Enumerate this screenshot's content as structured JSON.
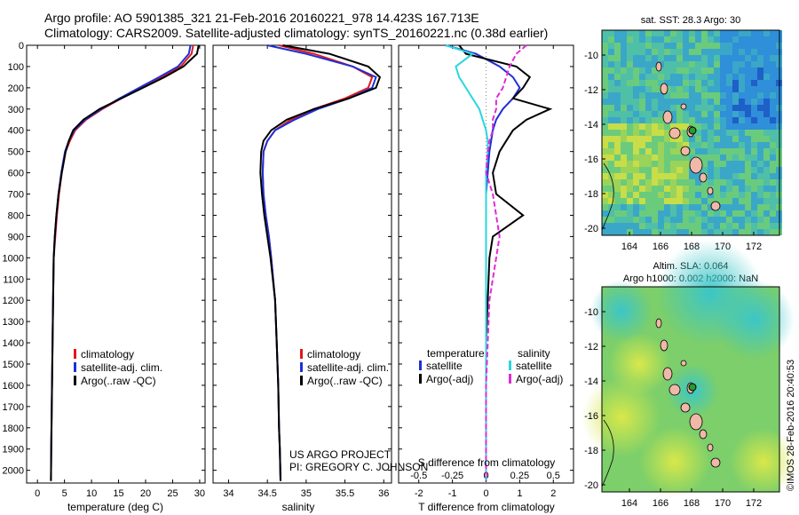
{
  "header": {
    "line1": "Argo profile: AO 5901385_321 21-Feb-2016 20160221_978 14.423S 167.713E",
    "line2": "Climatology: CARS2009. Satellite-adjusted climatology: synTS_20160221.nc (0.38d earlier)"
  },
  "colors": {
    "climatology": "#e0191d",
    "satellite": "#1f2fd6",
    "argo": "#000000",
    "sal_satellite": "#2bd6e0",
    "sal_argo": "#e02bd6"
  },
  "depth_ticks": [
    "0",
    "100",
    "200",
    "300",
    "400",
    "500",
    "600",
    "700",
    "800",
    "900",
    "1000",
    "1100",
    "1200",
    "1300",
    "1400",
    "1500",
    "1600",
    "1700",
    "1800",
    "1900",
    "2000"
  ],
  "temperature_panel": {
    "xlabel": "temperature (deg C)",
    "ticks": [
      "0",
      "5",
      "10",
      "15",
      "20",
      "25",
      "30"
    ],
    "legend": [
      "climatology",
      "satellite-adj. clim.",
      "Argo(..raw -QC)"
    ]
  },
  "salinity_panel": {
    "xlabel": "salinity",
    "ticks": [
      "34",
      "34.5",
      "35",
      "35.5",
      "36"
    ],
    "legend": [
      "climatology",
      "satellite-adj. clim.",
      "Argo(..raw -QC)"
    ],
    "credit1": "US ARGO PROJECT",
    "credit2": "PI: GREGORY C. JOHNSON"
  },
  "difference_panel": {
    "xlabel": "T difference from climatology",
    "top_label": "S difference from climatology",
    "top_ticks": [
      "-0.5",
      "-0.25",
      "0",
      "0.25",
      "0.5"
    ],
    "ticks": [
      "-2",
      "-1",
      "0",
      "1",
      "2"
    ],
    "legend_temp_title": "temperature",
    "legend_sal_title": "salinity",
    "legend_temp": [
      "satellite",
      "Argo(-adj)"
    ],
    "legend_sal": [
      "satellite",
      "Argo(-adj)"
    ]
  },
  "sst_map": {
    "title": "sat. SST: 28.3 Argo: 30",
    "lat_ticks": [
      "-10",
      "-12",
      "-14",
      "-16",
      "-18",
      "-20"
    ],
    "lon_ticks": [
      "164",
      "166",
      "168",
      "170",
      "172"
    ]
  },
  "sla_map": {
    "title1": "Altim. SLA: 0.064",
    "title2": "Argo h1000: 0.002 h2000: NaN",
    "lat_ticks": [
      "-10",
      "-12",
      "-14",
      "-16",
      "-18",
      "-20"
    ],
    "lon_ticks": [
      "164",
      "166",
      "168",
      "170",
      "172"
    ]
  },
  "footer": {
    "stamp": "©IMOS 28-Feb-2016 20:40:53"
  },
  "chart_data": [
    {
      "type": "line",
      "panel": "temperature",
      "xlabel": "temperature (deg C)",
      "ylabel": "",
      "xlim": [
        -2,
        31
      ],
      "ylim": [
        2060,
        0
      ],
      "series": [
        {
          "name": "climatology",
          "x": [
            28.8,
            28.5,
            26.5,
            23,
            19,
            15.5,
            12,
            9,
            7,
            6,
            5.2,
            4.5,
            4,
            3.6,
            3.3,
            3,
            2.9,
            2.8,
            2.7,
            2.6,
            2.55,
            2.5
          ],
          "y": [
            0,
            40,
            100,
            150,
            200,
            250,
            300,
            350,
            400,
            450,
            500,
            600,
            700,
            800,
            900,
            1000,
            1200,
            1400,
            1600,
            1800,
            1900,
            2050
          ]
        },
        {
          "name": "satellite-adj. clim.",
          "x": [
            28.3,
            28,
            26,
            22.5,
            18.8,
            15.2,
            11.8,
            8.8,
            6.8,
            5.8,
            5.1,
            4.4,
            3.9,
            3.5,
            3.2,
            3,
            2.9,
            2.8,
            2.7,
            2.6,
            2.55,
            2.5
          ],
          "y": [
            0,
            40,
            100,
            150,
            200,
            250,
            300,
            350,
            400,
            450,
            500,
            600,
            700,
            800,
            900,
            1000,
            1200,
            1400,
            1600,
            1800,
            1900,
            2050
          ]
        },
        {
          "name": "Argo(..raw -QC)",
          "x": [
            29.8,
            29.5,
            27,
            23.5,
            19.5,
            15.5,
            11.5,
            8.5,
            6.6,
            5.8,
            5.2,
            4.5,
            3.9,
            3.5,
            3.2,
            3,
            2.9,
            2.8,
            2.7,
            2.6,
            2.55,
            2.5
          ],
          "y": [
            0,
            40,
            100,
            150,
            200,
            250,
            300,
            350,
            400,
            450,
            500,
            600,
            700,
            800,
            900,
            1000,
            1200,
            1400,
            1600,
            1800,
            1900,
            2050
          ]
        }
      ]
    },
    {
      "type": "line",
      "panel": "salinity",
      "xlabel": "salinity",
      "ylabel": "",
      "xlim": [
        33.8,
        36.1
      ],
      "ylim": [
        2060,
        0
      ],
      "series": [
        {
          "name": "climatology",
          "x": [
            34.65,
            35.1,
            35.6,
            35.85,
            35.8,
            35.5,
            35.1,
            34.8,
            34.6,
            34.5,
            34.45,
            34.44,
            34.45,
            34.48,
            34.52,
            34.55,
            34.6,
            34.62,
            34.64,
            34.65,
            34.66,
            34.67
          ],
          "y": [
            0,
            40,
            100,
            150,
            200,
            250,
            300,
            350,
            400,
            450,
            500,
            600,
            700,
            800,
            900,
            1000,
            1200,
            1400,
            1600,
            1800,
            1900,
            2050
          ]
        },
        {
          "name": "satellite-adj. clim.",
          "x": [
            34.5,
            35,
            35.6,
            35.9,
            35.85,
            35.55,
            35.15,
            34.85,
            34.6,
            34.5,
            34.45,
            34.44,
            34.45,
            34.48,
            34.52,
            34.55,
            34.6,
            34.62,
            34.64,
            34.65,
            34.66,
            34.67
          ],
          "y": [
            0,
            40,
            100,
            150,
            200,
            250,
            300,
            350,
            400,
            450,
            500,
            600,
            700,
            800,
            900,
            1000,
            1200,
            1400,
            1600,
            1800,
            1900,
            2050
          ]
        },
        {
          "name": "Argo(..raw -QC)",
          "x": [
            34.7,
            35.3,
            35.8,
            35.95,
            35.9,
            35.55,
            35.1,
            34.75,
            34.55,
            34.45,
            34.42,
            34.41,
            34.43,
            34.46,
            34.5,
            34.54,
            34.6,
            34.62,
            34.64,
            34.65,
            34.66,
            34.67
          ],
          "y": [
            0,
            40,
            100,
            150,
            200,
            250,
            300,
            350,
            400,
            450,
            500,
            600,
            700,
            800,
            900,
            1000,
            1200,
            1400,
            1600,
            1800,
            1900,
            2050
          ]
        }
      ]
    },
    {
      "type": "line",
      "panel": "difference",
      "xlabel": "T difference from climatology",
      "ylabel": "",
      "xlim": [
        -2.6,
        2.6
      ],
      "ylim": [
        2060,
        0
      ],
      "series": [
        {
          "name": "satellite",
          "x": [
            -1.2,
            -0.3,
            0.4,
            0.8,
            1.0,
            0.8,
            0.5,
            0.3,
            0.2,
            0.15,
            0.1,
            0.05,
            0,
            0,
            0,
            0,
            0,
            0,
            0,
            0,
            0,
            0
          ],
          "y": [
            0,
            40,
            100,
            150,
            200,
            250,
            300,
            350,
            400,
            450,
            500,
            600,
            700,
            800,
            900,
            1000,
            1200,
            1400,
            1600,
            1800,
            1900,
            2050
          ]
        },
        {
          "name": "Argo(-adj)",
          "x": [
            -0.8,
            -0.6,
            0.9,
            1.3,
            1.1,
            0.8,
            1.9,
            1.2,
            0.8,
            0.6,
            0.4,
            0.2,
            0.3,
            1.1,
            0.2,
            0.1,
            0.05,
            0,
            0,
            0,
            0,
            0
          ],
          "y": [
            0,
            40,
            100,
            150,
            200,
            250,
            300,
            350,
            400,
            450,
            500,
            600,
            700,
            800,
            900,
            1000,
            1200,
            1400,
            1600,
            1800,
            1900,
            2050
          ]
        },
        {
          "name": "salinity satellite",
          "x": [
            -1.2,
            -0.4,
            -0.9,
            -0.8,
            -0.6,
            -0.4,
            -0.2,
            -0.1,
            0,
            0.05,
            0.05,
            0,
            0,
            0,
            0,
            0,
            0,
            0,
            0,
            0,
            0,
            0
          ],
          "y": [
            0,
            40,
            100,
            150,
            200,
            250,
            300,
            350,
            400,
            450,
            500,
            600,
            700,
            800,
            900,
            1000,
            1200,
            1400,
            1600,
            1800,
            1900,
            2050
          ]
        },
        {
          "name": "salinity Argo(-adj)",
          "x": [
            1.2,
            0.9,
            0.7,
            0.6,
            0.5,
            0.3,
            0.3,
            0.2,
            0.2,
            0.1,
            0.05,
            0,
            0.2,
            0.3,
            0.4,
            0.3,
            0.1,
            0.05,
            0,
            0,
            0,
            0
          ],
          "y": [
            0,
            40,
            100,
            150,
            200,
            250,
            300,
            350,
            400,
            450,
            500,
            600,
            700,
            800,
            900,
            1000,
            1200,
            1400,
            1600,
            1800,
            1900,
            2050
          ]
        }
      ]
    }
  ]
}
